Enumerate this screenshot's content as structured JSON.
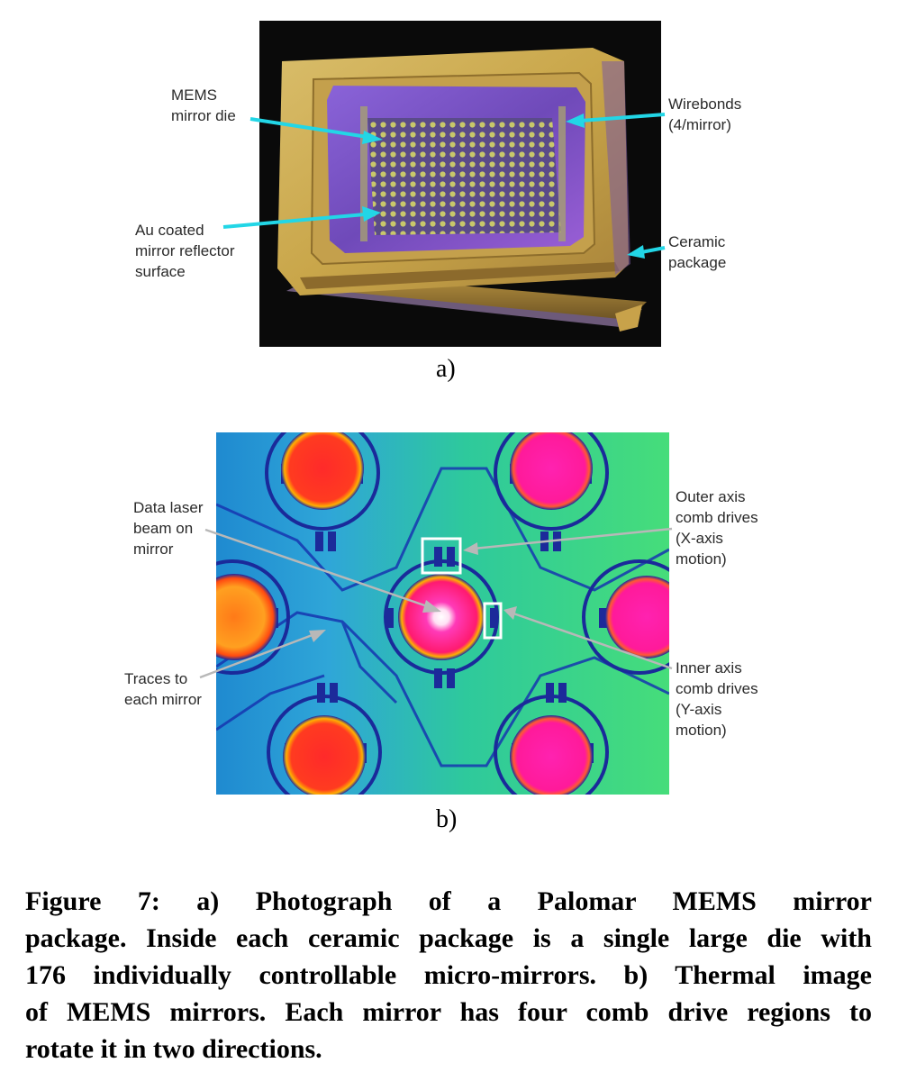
{
  "figure_a": {
    "labels": {
      "mems_die_1": "MEMS",
      "mems_die_2": "mirror die",
      "au_1": "Au coated",
      "au_2": "mirror reflector",
      "au_3": "surface",
      "wirebonds_1": "Wirebonds",
      "wirebonds_2": "(4/mirror)",
      "ceramic_1": "Ceramic",
      "ceramic_2": "package"
    },
    "sublabel": "a)",
    "colors": {
      "arrow": "#22d6e6",
      "gold": "#c9a94a",
      "purple": "#7a4fd0"
    }
  },
  "figure_b": {
    "labels": {
      "data_laser_1": "Data laser",
      "data_laser_2": "beam on",
      "data_laser_3": "mirror",
      "traces_1": "Traces to",
      "traces_2": "each mirror",
      "outer_1": "Outer axis",
      "outer_2": "comb drives",
      "outer_3": "(X-axis",
      "outer_4": "motion)",
      "inner_1": "Inner axis",
      "inner_2": "comb drives",
      "inner_3": "(Y-axis",
      "inner_4": "motion)"
    },
    "sublabel": "b)",
    "colors": {
      "arrow": "#b8b8b8",
      "background": "#2ec9a0",
      "mirror_hot": "#ff1fa8",
      "mirror_warm": "#ff3a2a"
    }
  },
  "caption": {
    "line1": "Figure 7: a) Photograph of a Palomar MEMS mirror",
    "line2": "package.  Inside each ceramic package is a single large die with",
    "line3": "176 individually controllable micro-mirrors. b) Thermal image",
    "line4": "of MEMS mirrors. Each mirror has four comb drive regions to",
    "line5": "rotate it in two directions."
  }
}
